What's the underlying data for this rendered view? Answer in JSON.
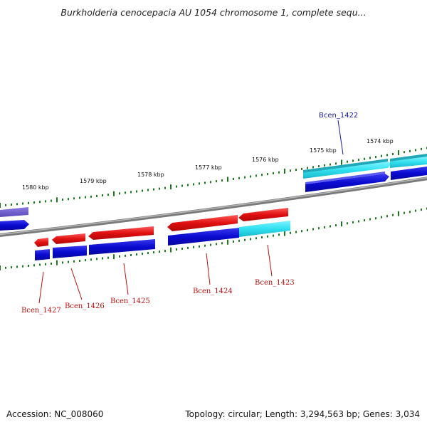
{
  "header": {
    "title": "Burkholderia cenocepacia AU 1054 chromosome 1, complete sequ..."
  },
  "footer": {
    "accession": "Accession: NC_008060",
    "summary": "Topology: circular; Length: 3,294,563 bp; Genes: 3,034"
  },
  "ruler": {
    "tick_labels": [
      "1574 kbp",
      "1575 kbp",
      "1576 kbp",
      "1577 kbp",
      "1578 kbp",
      "1579 kbp",
      "1580 kbp"
    ]
  },
  "genes": [
    {
      "name": "Bcen_1422",
      "label_color": "#1a1aa6"
    },
    {
      "name": "Bcen_1423",
      "label_color": "#c01010"
    },
    {
      "name": "Bcen_1424",
      "label_color": "#c01010"
    },
    {
      "name": "Bcen_1425",
      "label_color": "#c01010"
    },
    {
      "name": "Bcen_1426",
      "label_color": "#c01010"
    },
    {
      "name": "Bcen_1427",
      "label_color": "#c01010"
    }
  ],
  "colors": {
    "backbone": "#7a7a7a",
    "cds_forward": "#e01010",
    "cds_reverse": "#0a0ad0",
    "highlight": "#30e0f0",
    "tick": "#1a7a1a",
    "purple": "#6a5acd"
  }
}
